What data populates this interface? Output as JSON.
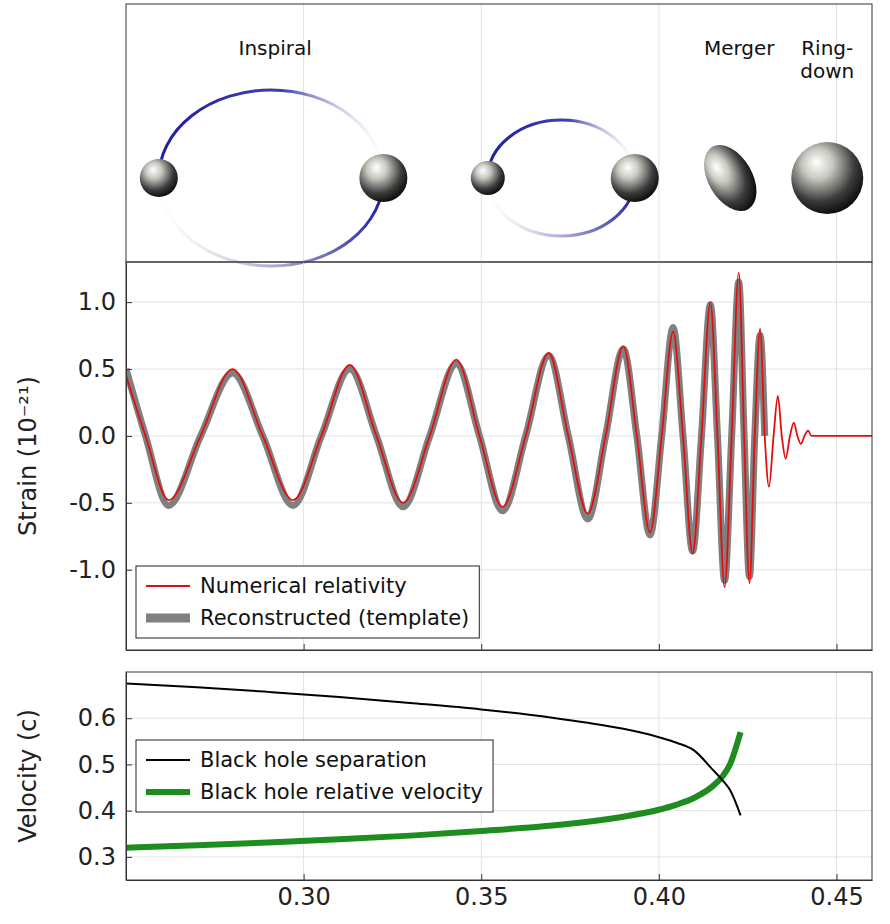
{
  "diagram": {
    "labels": [
      "Inspiral",
      "Merger",
      "Ring-down"
    ]
  },
  "chart_data": [
    {
      "type": "line",
      "ylabel": "Strain (10⁻²¹)",
      "x": [
        0.25,
        0.2555,
        0.262,
        0.271,
        0.28,
        0.2885,
        0.297,
        0.305,
        0.313,
        0.3205,
        0.328,
        0.3355,
        0.343,
        0.3495,
        0.356,
        0.3625,
        0.369,
        0.3745,
        0.38,
        0.385,
        0.39,
        0.3938,
        0.3975,
        0.4008,
        0.404,
        0.4068,
        0.4095,
        0.412,
        0.4145,
        0.4165,
        0.4185,
        0.4205,
        0.4225,
        0.424,
        0.4255,
        0.427,
        0.4285,
        0.4298,
        0.431,
        0.4323,
        0.4335,
        0.4346,
        0.4357,
        0.4369,
        0.438,
        0.439,
        0.44,
        0.441,
        0.442,
        0.443,
        0.444,
        0.46
      ],
      "series": [
        {
          "name": "Numerical relativity",
          "color": "#e01010",
          "line_style": "solid",
          "values": [
            0.45,
            0,
            -0.48,
            0,
            0.5,
            0,
            -0.48,
            0,
            0.53,
            0,
            -0.5,
            0,
            0.57,
            0,
            -0.53,
            0,
            0.62,
            0,
            -0.58,
            0,
            0.67,
            0,
            -0.72,
            0,
            0.78,
            0,
            -0.88,
            0,
            1.0,
            0,
            -1.13,
            0,
            1.22,
            0,
            -1.1,
            0,
            0.8,
            0,
            -0.38,
            0,
            0.3,
            0,
            -0.17,
            0,
            0.1,
            0,
            -0.06,
            0,
            0.04,
            0,
            0,
            0
          ]
        },
        {
          "name": "Reconstructed (template)",
          "color": "#808080",
          "line_style": "thick",
          "values": [
            0.5,
            0,
            -0.52,
            0,
            0.47,
            0,
            -0.52,
            0,
            0.5,
            0,
            -0.53,
            0,
            0.54,
            0,
            -0.56,
            0,
            0.6,
            0,
            -0.62,
            0,
            0.65,
            0,
            -0.74,
            0,
            0.81,
            0,
            -0.86,
            0,
            0.98,
            0,
            -1.08,
            0,
            1.15,
            0,
            -1.05,
            0,
            0.75,
            0,
            null,
            null,
            null,
            null,
            null,
            null,
            null,
            null,
            null,
            null,
            null,
            null,
            null,
            null
          ]
        }
      ],
      "xlim": [
        0.25,
        0.46
      ],
      "xticks": [
        {
          "value": 0.3,
          "label": "0.30"
        },
        0.35,
        {
          "value": 0.4,
          "label": "0.40"
        },
        0.45
      ],
      "ylim": [
        -1.6,
        1.3
      ],
      "yticks": [
        {
          "value": -1,
          "label": "-1.0"
        },
        -0.5,
        {
          "value": 0,
          "label": "0.0"
        },
        0.5,
        {
          "value": 1,
          "label": "1.0"
        }
      ],
      "grid": true,
      "legend": "lower left",
      "tick_labels": "y"
    },
    {
      "type": "line",
      "ylabel": "Velocity (c)",
      "x": [
        0.25,
        0.27,
        0.29,
        0.31,
        0.33,
        0.35,
        0.37,
        0.38,
        0.39,
        0.4,
        0.405,
        0.41,
        0.415,
        0.418,
        0.42,
        0.423
      ],
      "series": [
        {
          "name": "Black hole separation",
          "color": "#000000",
          "line_style": "solid",
          "values": [
            0.675,
            0.667,
            0.657,
            0.646,
            0.633,
            0.619,
            0.601,
            0.59,
            0.577,
            0.559,
            0.547,
            0.53,
            0.49,
            0.465,
            0.445,
            0.39
          ]
        },
        {
          "name": "Black hole relative velocity",
          "color": "#1e8c1e",
          "line_style": "thick",
          "values": [
            0.32,
            0.325,
            0.331,
            0.338,
            0.346,
            0.356,
            0.368,
            0.376,
            0.387,
            0.402,
            0.413,
            0.428,
            0.452,
            0.475,
            0.5,
            0.57
          ]
        }
      ],
      "xlim": [
        0.25,
        0.46
      ],
      "xticks": [
        {
          "value": 0.3,
          "label": "0.30"
        },
        0.35,
        {
          "value": 0.4,
          "label": "0.40"
        },
        0.45
      ],
      "ylim": [
        0.25,
        0.7
      ],
      "yticks": [
        0.3,
        0.4,
        0.5,
        0.6
      ],
      "grid": true,
      "legend": "center left"
    }
  ]
}
